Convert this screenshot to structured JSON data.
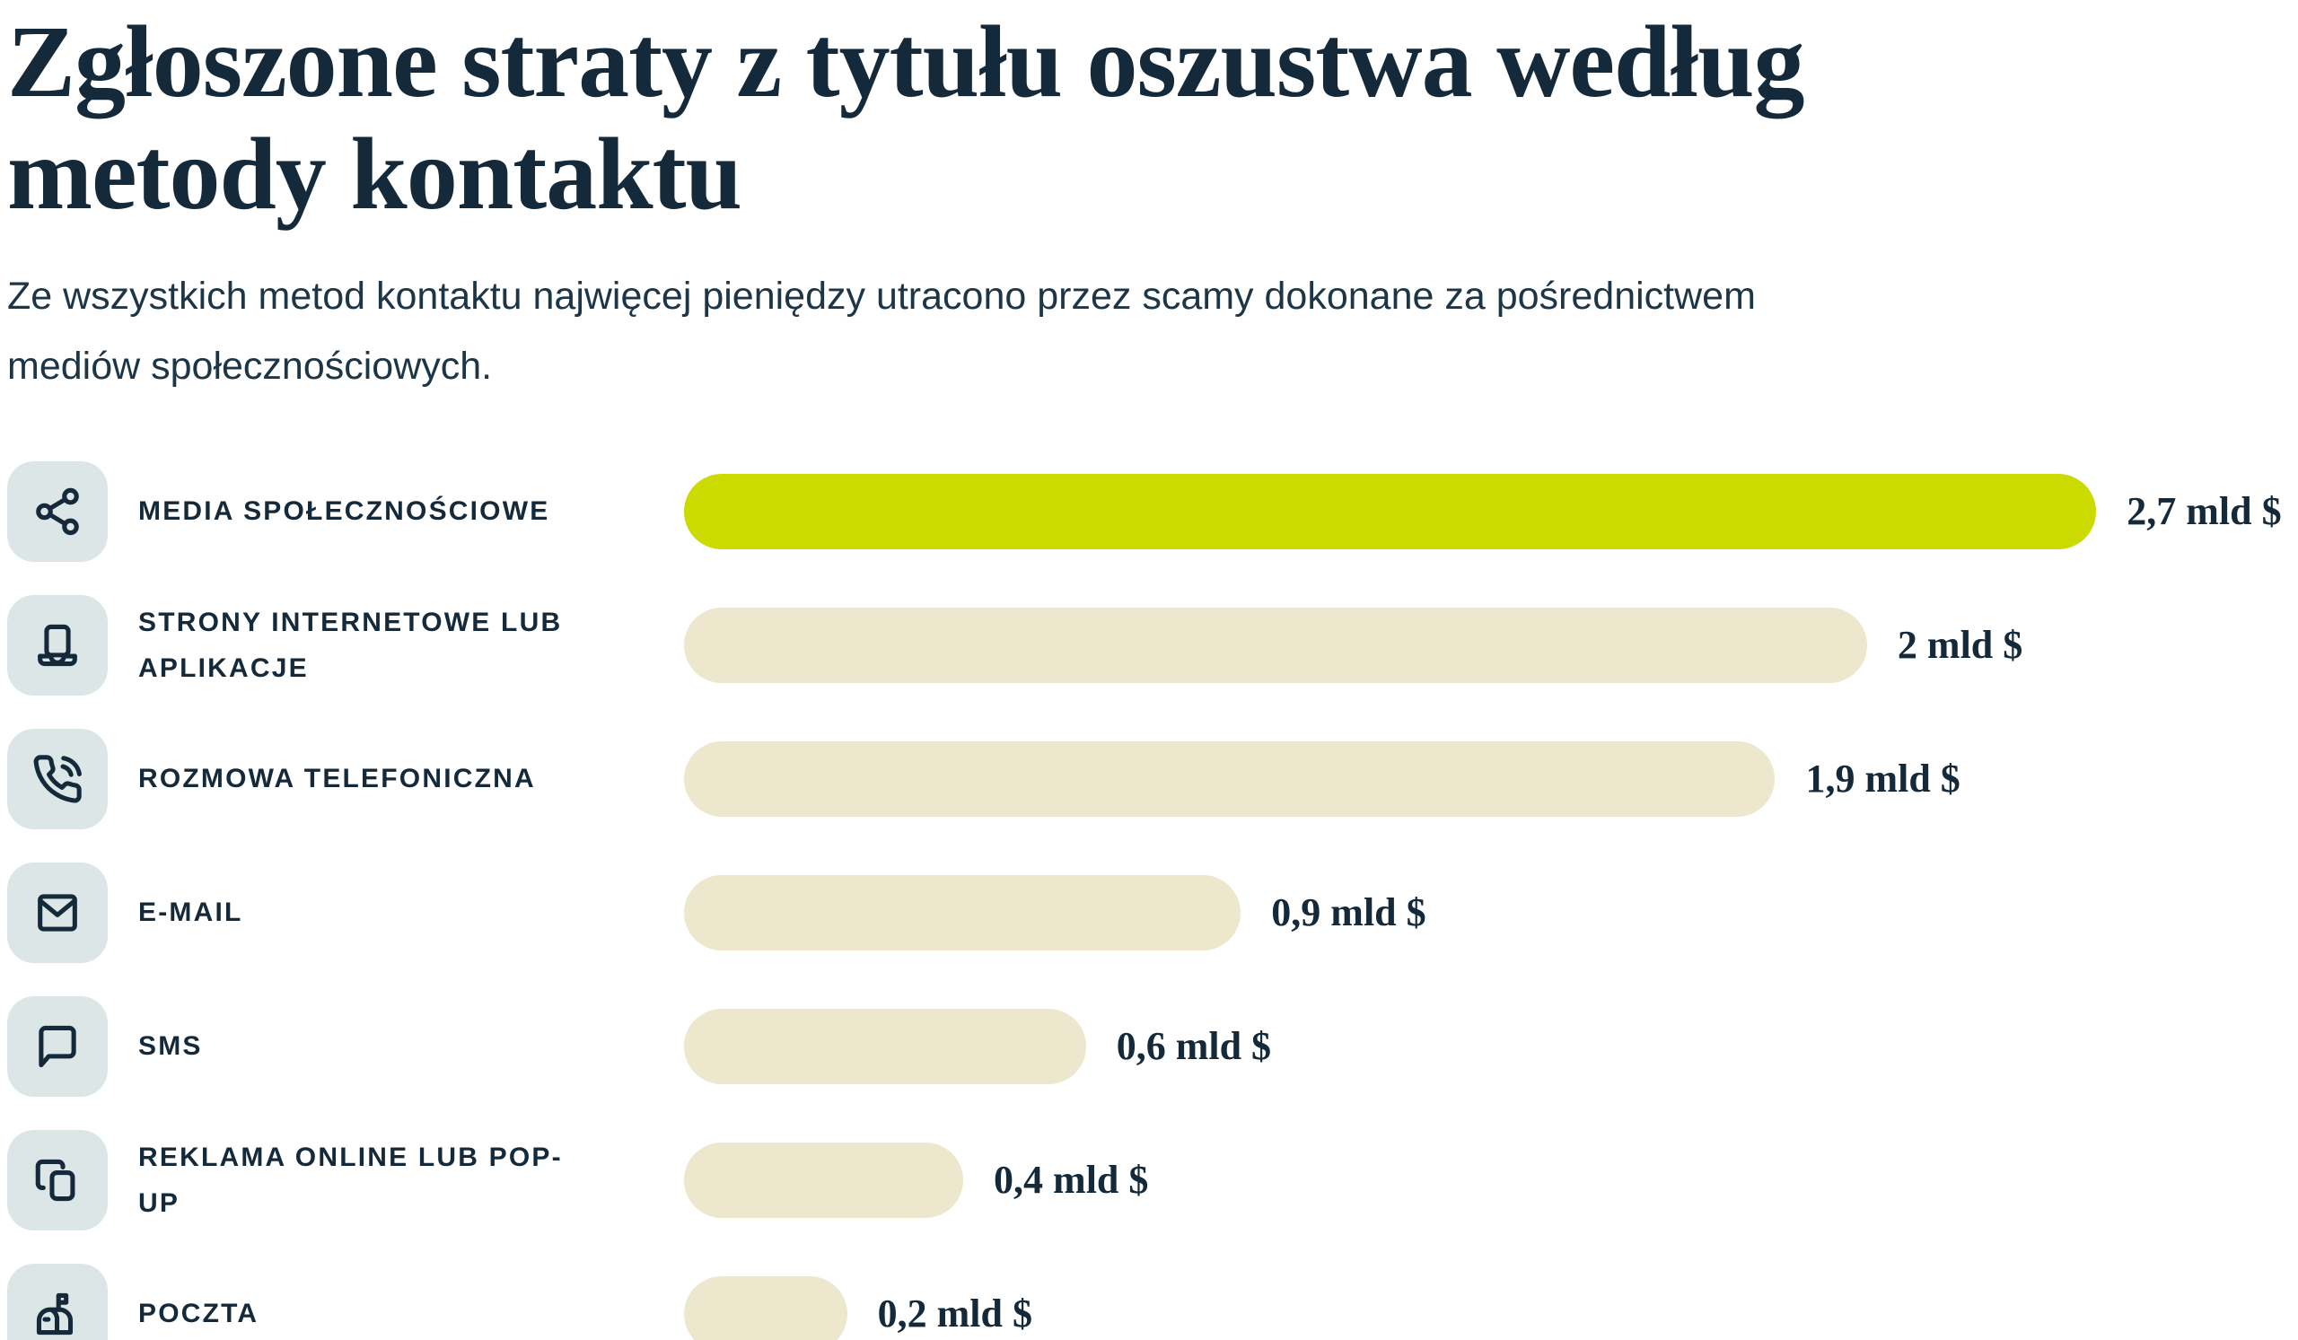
{
  "page": {
    "title_lines": [
      "Zgłoszone straty z tytułu oszustwa według",
      "metody kontaktu"
    ],
    "subtitle_lines": [
      "Ze wszystkich metod kontaktu najwięcej pieniędzy utracono przez scamy dokonane za pośrednictwem",
      "mediów społecznościowych."
    ]
  },
  "colors": {
    "background": "#FFFFFF",
    "text": "#14293A",
    "highlight_bar": "#CBDB00",
    "bar": "#ECE7CD",
    "icon_tile": "#DCE6E6"
  },
  "chart_data": {
    "type": "bar",
    "orientation": "horizontal",
    "title": "Zgłoszone straty z tytułu oszustwa według metody kontaktu",
    "subtitle": "Ze wszystkich metod kontaktu najwięcej pieniędzy utracono przez scamy dokonane za pośrednictwem mediów społecznościowych.",
    "categories": [
      "MEDIA SPOŁECZNOŚCIOWE",
      "STRONY INTERNETOWE LUB APLIKACJE",
      "ROZMOWA TELEFONICZNA",
      "E-MAIL",
      "SMS",
      "REKLAMA ONLINE LUB POP-UP",
      "POCZTA"
    ],
    "values": [
      2.7,
      2,
      1.9,
      0.9,
      0.6,
      0.4,
      0.2
    ],
    "value_labels": [
      "2,7 mld $",
      "2 mld $",
      "1,9 mld $",
      "0,9 mld $",
      "0,6 mld $",
      "0,4 mld $",
      "0,2 mld $"
    ],
    "unit": "mld $",
    "icons": [
      "share-icon",
      "laptop-icon",
      "phone-call-icon",
      "mail-icon",
      "message-square-icon",
      "popup-ad-icon",
      "mailbox-icon"
    ],
    "highlight_index": 0,
    "bar_pct": [
      87.5,
      73.3,
      67.6,
      34.5,
      24.9,
      17.3,
      10.1
    ],
    "xlabel": "",
    "ylabel": "",
    "xlim": [
      0,
      2.7
    ],
    "grid": false,
    "legend": false
  }
}
